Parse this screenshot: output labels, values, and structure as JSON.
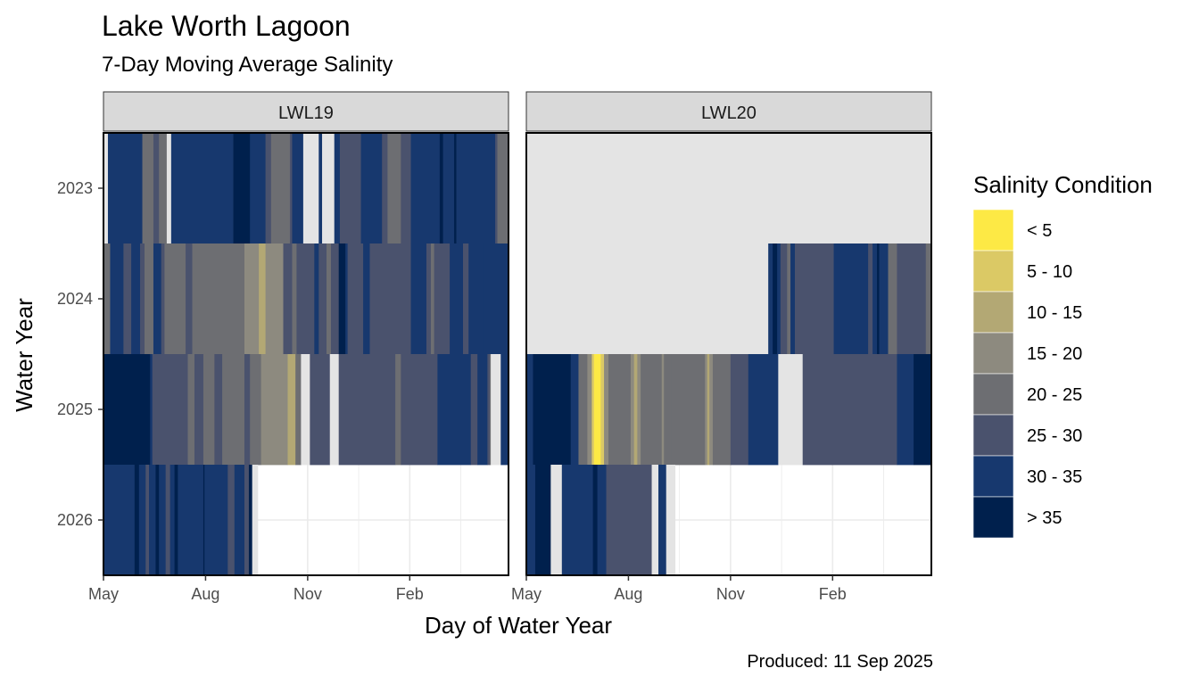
{
  "chart_data": {
    "type": "heatmap",
    "title": "Lake Worth Lagoon",
    "subtitle": "7-Day Moving Average Salinity",
    "xlabel": "Day of Water Year",
    "ylabel": "Water Year",
    "caption": "Produced: 11 Sep 2025",
    "x_ticks": [
      "May",
      "Aug",
      "Nov",
      "Feb"
    ],
    "x_tick_days": [
      0,
      92,
      184,
      276
    ],
    "x_range_days": [
      0,
      365
    ],
    "years": [
      "2023",
      "2024",
      "2025",
      "2026"
    ],
    "legend_title": "Salinity Condition",
    "legend_position": "right",
    "categories": [
      "< 5",
      "5 - 10",
      "10 - 15",
      "15 - 20",
      "20 - 25",
      "25 - 30",
      "30 - 35",
      "> 35"
    ],
    "colors": {
      "< 5": "#FDE945",
      "5 - 10": "#DBC965",
      "10 - 15": "#B3A874",
      "15 - 20": "#8D8A7F",
      "20 - 25": "#6D6E72",
      "25 - 30": "#4A526D",
      "30 - 35": "#17386E",
      "> 35": "#00204D",
      "missing": "#E4E4E4"
    },
    "panels": [
      {
        "name": "LWL19",
        "rows": [
          {
            "year": "2023",
            "segments": [
              [
                0,
                4,
                "missing"
              ],
              [
                4,
                35,
                "30 - 35"
              ],
              [
                35,
                45,
                "20 - 25"
              ],
              [
                45,
                50,
                "25 - 30"
              ],
              [
                50,
                57,
                "20 - 25"
              ],
              [
                57,
                61,
                "missing"
              ],
              [
                61,
                117,
                "30 - 35"
              ],
              [
                117,
                132,
                "> 35"
              ],
              [
                132,
                146,
                "30 - 35"
              ],
              [
                146,
                151,
                "25 - 30"
              ],
              [
                151,
                168,
                "20 - 25"
              ],
              [
                168,
                170,
                "25 - 30"
              ],
              [
                170,
                180,
                "30 - 35"
              ],
              [
                180,
                194,
                "missing"
              ],
              [
                194,
                197,
                "30 - 35"
              ],
              [
                197,
                208,
                "missing"
              ],
              [
                208,
                213,
                "30 - 35"
              ],
              [
                213,
                232,
                "25 - 30"
              ],
              [
                232,
                251,
                "30 - 35"
              ],
              [
                251,
                256,
                "25 - 30"
              ],
              [
                256,
                268,
                "20 - 25"
              ],
              [
                268,
                277,
                "25 - 30"
              ],
              [
                277,
                303,
                "30 - 35"
              ],
              [
                303,
                306,
                "> 35"
              ],
              [
                306,
                316,
                "30 - 35"
              ],
              [
                316,
                318,
                "> 35"
              ],
              [
                318,
                353,
                "30 - 35"
              ],
              [
                353,
                355,
                "25 - 30"
              ],
              [
                355,
                365,
                "20 - 25"
              ]
            ]
          },
          {
            "year": "2024",
            "segments": [
              [
                0,
                6,
                "20 - 25"
              ],
              [
                6,
                18,
                "30 - 35"
              ],
              [
                18,
                25,
                "25 - 30"
              ],
              [
                25,
                33,
                "30 - 35"
              ],
              [
                33,
                37,
                "25 - 30"
              ],
              [
                37,
                45,
                "20 - 25"
              ],
              [
                45,
                52,
                "30 - 35"
              ],
              [
                52,
                55,
                "25 - 30"
              ],
              [
                55,
                74,
                "20 - 25"
              ],
              [
                74,
                80,
                "25 - 30"
              ],
              [
                80,
                127,
                "20 - 25"
              ],
              [
                127,
                140,
                "15 - 20"
              ],
              [
                140,
                146,
                "10 - 15"
              ],
              [
                146,
                162,
                "15 - 20"
              ],
              [
                162,
                170,
                "25 - 30"
              ],
              [
                170,
                174,
                "20 - 25"
              ],
              [
                174,
                190,
                "25 - 30"
              ],
              [
                190,
                194,
                "30 - 35"
              ],
              [
                194,
                201,
                "25 - 30"
              ],
              [
                201,
                205,
                "20 - 25"
              ],
              [
                205,
                212,
                "25 - 30"
              ],
              [
                212,
                218,
                "> 35"
              ],
              [
                218,
                220,
                "30 - 35"
              ],
              [
                220,
                234,
                "25 - 30"
              ],
              [
                234,
                240,
                "30 - 35"
              ],
              [
                240,
                277,
                "25 - 30"
              ],
              [
                277,
                291,
                "30 - 35"
              ],
              [
                291,
                295,
                "25 - 30"
              ],
              [
                295,
                298,
                "20 - 25"
              ],
              [
                298,
                312,
                "25 - 30"
              ],
              [
                312,
                324,
                "30 - 35"
              ],
              [
                324,
                329,
                "25 - 30"
              ],
              [
                329,
                343,
                "30 - 35"
              ],
              [
                343,
                365,
                "30 - 35"
              ]
            ]
          },
          {
            "year": "2025",
            "segments": [
              [
                0,
                42,
                "> 35"
              ],
              [
                42,
                44,
                "30 - 35"
              ],
              [
                44,
                76,
                "25 - 30"
              ],
              [
                76,
                82,
                "20 - 25"
              ],
              [
                82,
                90,
                "25 - 30"
              ],
              [
                90,
                100,
                "20 - 25"
              ],
              [
                100,
                107,
                "25 - 30"
              ],
              [
                107,
                127,
                "20 - 25"
              ],
              [
                127,
                132,
                "25 - 30"
              ],
              [
                132,
                142,
                "20 - 25"
              ],
              [
                142,
                166,
                "15 - 20"
              ],
              [
                166,
                173,
                "10 - 15"
              ],
              [
                173,
                178,
                "20 - 25"
              ],
              [
                178,
                186,
                "missing"
              ],
              [
                186,
                204,
                "25 - 30"
              ],
              [
                204,
                212,
                "missing"
              ],
              [
                212,
                263,
                "25 - 30"
              ],
              [
                263,
                268,
                "20 - 25"
              ],
              [
                268,
                301,
                "25 - 30"
              ],
              [
                301,
                331,
                "30 - 35"
              ],
              [
                331,
                337,
                "25 - 30"
              ],
              [
                337,
                346,
                "30 - 35"
              ],
              [
                346,
                348,
                "25 - 30"
              ],
              [
                348,
                349,
                "20 - 25"
              ],
              [
                349,
                358,
                "missing"
              ],
              [
                358,
                365,
                "30 - 35"
              ]
            ]
          },
          {
            "year": "2026",
            "segments": [
              [
                0,
                28,
                "30 - 35"
              ],
              [
                28,
                32,
                "> 35"
              ],
              [
                32,
                38,
                "30 - 35"
              ],
              [
                38,
                41,
                "25 - 30"
              ],
              [
                41,
                47,
                "30 - 35"
              ],
              [
                47,
                50,
                "> 35"
              ],
              [
                50,
                56,
                "30 - 35"
              ],
              [
                56,
                60,
                "25 - 30"
              ],
              [
                60,
                64,
                "30 - 35"
              ],
              [
                64,
                67,
                "> 35"
              ],
              [
                67,
                90,
                "30 - 35"
              ],
              [
                90,
                91,
                "> 35"
              ],
              [
                91,
                112,
                "30 - 35"
              ],
              [
                112,
                118,
                "25 - 30"
              ],
              [
                118,
                127,
                "30 - 35"
              ],
              [
                127,
                131,
                "25 - 30"
              ],
              [
                131,
                134,
                "> 35"
              ],
              [
                134,
                139,
                "missing"
              ]
            ]
          }
        ]
      },
      {
        "name": "LWL20",
        "rows": [
          {
            "year": "2023",
            "segments": [
              [
                0,
                365,
                "missing"
              ]
            ]
          },
          {
            "year": "2024",
            "segments": [
              [
                0,
                218,
                "missing"
              ],
              [
                218,
                222,
                "30 - 35"
              ],
              [
                222,
                226,
                "> 35"
              ],
              [
                226,
                229,
                "30 - 35"
              ],
              [
                229,
                235,
                "25 - 30"
              ],
              [
                235,
                238,
                "20 - 25"
              ],
              [
                238,
                242,
                "30 - 35"
              ],
              [
                242,
                277,
                "25 - 30"
              ],
              [
                277,
                308,
                "30 - 35"
              ],
              [
                308,
                312,
                "25 - 30"
              ],
              [
                312,
                316,
                "30 - 35"
              ],
              [
                316,
                318,
                "> 35"
              ],
              [
                318,
                326,
                "30 - 35"
              ],
              [
                326,
                334,
                "20 - 25"
              ],
              [
                334,
                360,
                "25 - 30"
              ],
              [
                360,
                365,
                "20 - 25"
              ]
            ]
          },
          {
            "year": "2025",
            "segments": [
              [
                0,
                6,
                "30 - 35"
              ],
              [
                6,
                40,
                "> 35"
              ],
              [
                40,
                47,
                "30 - 35"
              ],
              [
                47,
                55,
                "20 - 25"
              ],
              [
                55,
                59,
                "15 - 20"
              ],
              [
                59,
                61,
                "5 - 10"
              ],
              [
                61,
                63,
                "< 5"
              ],
              [
                63,
                67,
                "< 5"
              ],
              [
                67,
                70,
                "5 - 10"
              ],
              [
                70,
                74,
                "15 - 20"
              ],
              [
                74,
                94,
                "20 - 25"
              ],
              [
                94,
                97,
                "15 - 20"
              ],
              [
                97,
                100,
                "10 - 15"
              ],
              [
                100,
                103,
                "15 - 20"
              ],
              [
                103,
                122,
                "20 - 25"
              ],
              [
                122,
                124,
                "15 - 20"
              ],
              [
                124,
                131,
                "20 - 25"
              ],
              [
                131,
                161,
                "20 - 25"
              ],
              [
                161,
                163,
                "15 - 20"
              ],
              [
                163,
                165,
                "10 - 15"
              ],
              [
                165,
                168,
                "15 - 20"
              ],
              [
                168,
                184,
                "20 - 25"
              ],
              [
                184,
                200,
                "25 - 30"
              ],
              [
                200,
                227,
                "30 - 35"
              ],
              [
                227,
                249,
                "missing"
              ],
              [
                249,
                334,
                "25 - 30"
              ],
              [
                334,
                349,
                "30 - 35"
              ],
              [
                349,
                365,
                "> 35"
              ]
            ]
          },
          {
            "year": "2026",
            "segments": [
              [
                0,
                8,
                "30 - 35"
              ],
              [
                8,
                22,
                "> 35"
              ],
              [
                22,
                32,
                "missing"
              ],
              [
                32,
                60,
                "30 - 35"
              ],
              [
                60,
                64,
                "> 35"
              ],
              [
                64,
                72,
                "30 - 35"
              ],
              [
                72,
                75,
                "25 - 30"
              ],
              [
                75,
                113,
                "25 - 30"
              ],
              [
                113,
                119,
                "missing"
              ],
              [
                119,
                126,
                "30 - 35"
              ],
              [
                126,
                134,
                "missing"
              ]
            ]
          }
        ]
      }
    ]
  }
}
